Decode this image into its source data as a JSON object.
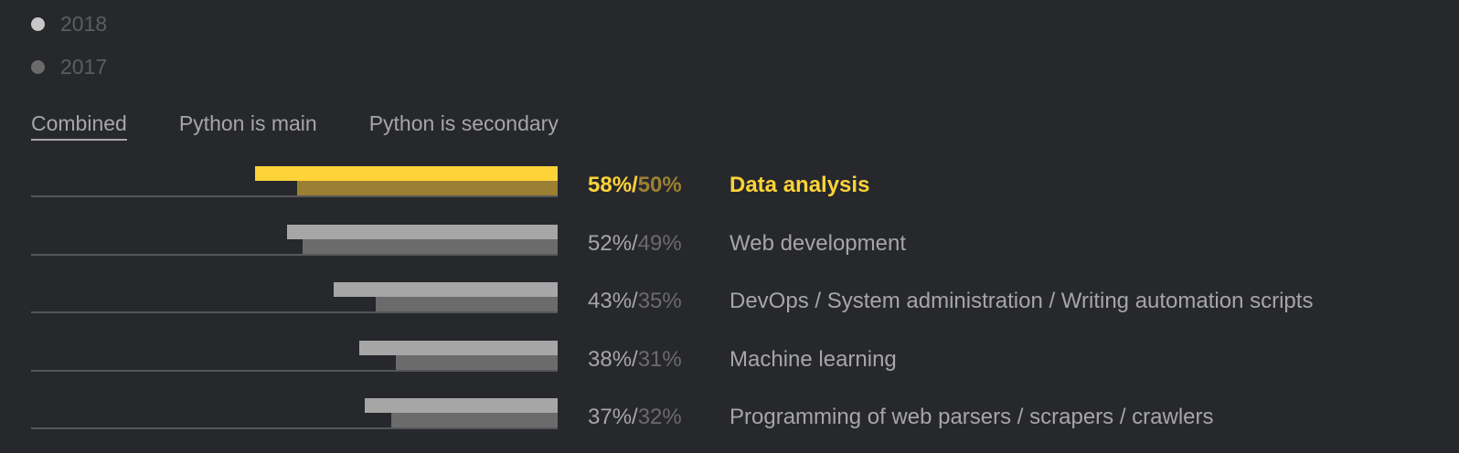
{
  "colors": {
    "background": "#27282c",
    "bar_2018": "#a6a6a6",
    "bar_2017": "#6b6b6b",
    "highlight_2018": "#fdd338",
    "highlight_2017": "#9b7f32",
    "legend_dot_2018": "#c7c7c7",
    "legend_dot_2017": "#6b6b6b",
    "text": "#a6a6a6",
    "text_dim": "#6b6b6b",
    "axis": "#55565a"
  },
  "legend": [
    {
      "label": "2018"
    },
    {
      "label": "2017"
    }
  ],
  "tabs": [
    {
      "label": "Combined",
      "active": true
    },
    {
      "label": "Python is main",
      "active": false
    },
    {
      "label": "Python is secondary",
      "active": false
    }
  ],
  "chart_data": {
    "type": "bar",
    "orientation": "horizontal",
    "categories": [
      "Data analysis",
      "Web development",
      "DevOps / System administration / Writing automation scripts",
      "Machine learning",
      "Programming of web parsers / scrapers / crawlers"
    ],
    "series": [
      {
        "name": "2018",
        "values": [
          58,
          52,
          43,
          38,
          37
        ]
      },
      {
        "name": "2017",
        "values": [
          50,
          49,
          35,
          31,
          32
        ]
      }
    ],
    "labels": [
      {
        "primary": "58%",
        "sep": "/",
        "secondary": "50%"
      },
      {
        "primary": "52%",
        "sep": "/",
        "secondary": "49%"
      },
      {
        "primary": "43%",
        "sep": "/",
        "secondary": "35%"
      },
      {
        "primary": "38%",
        "sep": "/",
        "secondary": "31%"
      },
      {
        "primary": "37%",
        "sep": "/",
        "secondary": "32%"
      }
    ],
    "highlight_index": 0,
    "xlim": [
      0,
      100
    ],
    "title": "",
    "xlabel": "",
    "ylabel": ""
  }
}
